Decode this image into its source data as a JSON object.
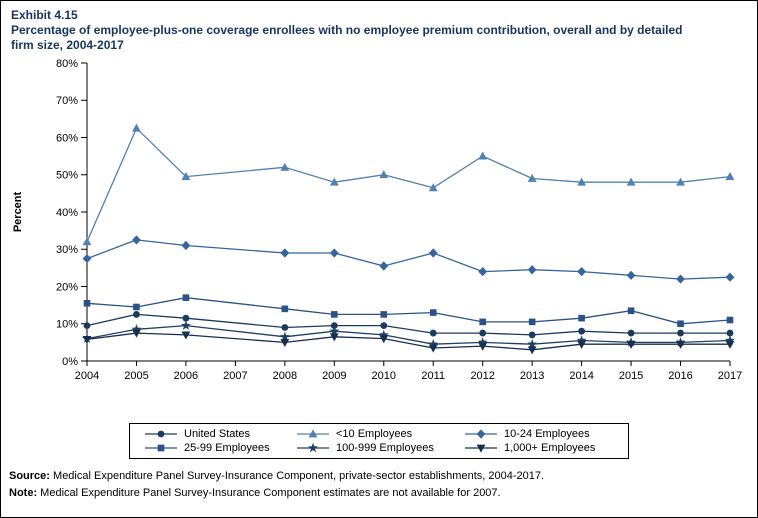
{
  "header": {
    "exhibit": "Exhibit 4.15",
    "title": "Percentage of employee-plus-one coverage enrollees with no employee premium contribution, overall and by detailed firm size, 2004-2017"
  },
  "chart_data": {
    "type": "line",
    "x": [
      2004,
      2005,
      2006,
      2007,
      2008,
      2009,
      2010,
      2011,
      2012,
      2013,
      2014,
      2015,
      2016,
      2017
    ],
    "ylabel": "Percent",
    "ylim": [
      0,
      80
    ],
    "ytick_step": 10,
    "ytick_suffix": "%",
    "legend_position": "bottom",
    "note": "2007 values not available",
    "series": [
      {
        "name": "United States",
        "marker": "circle",
        "color": "#1b3a5f",
        "values": [
          9.5,
          12.5,
          11.5,
          null,
          9,
          9.5,
          9.5,
          7.5,
          7.5,
          7,
          8,
          7.5,
          7.5,
          7.5
        ]
      },
      {
        "name": "<10 Employees",
        "marker": "triangle-up",
        "color": "#4f81b2",
        "values": [
          32,
          62.5,
          49.5,
          null,
          52,
          48,
          50,
          46.5,
          55,
          49,
          48,
          48,
          48,
          49.5
        ]
      },
      {
        "name": "10-24 Employees",
        "marker": "diamond",
        "color": "#34659b",
        "values": [
          27.5,
          32.5,
          31,
          null,
          29,
          29,
          25.5,
          29,
          24,
          24.5,
          24,
          23,
          22,
          22.5
        ]
      },
      {
        "name": "25-99 Employees",
        "marker": "square",
        "color": "#2a5286",
        "values": [
          15.5,
          14.5,
          17,
          null,
          14,
          12.5,
          12.5,
          13,
          10.5,
          10.5,
          11.5,
          13.5,
          10,
          11
        ]
      },
      {
        "name": "100-999 Employees",
        "marker": "star",
        "color": "#1f4061",
        "values": [
          6,
          8.5,
          9.5,
          null,
          6.5,
          8,
          7,
          4.5,
          5,
          4.5,
          5.5,
          5,
          5,
          5.5
        ]
      },
      {
        "name": "1,000+ Employees",
        "marker": "triangle-down",
        "color": "#16304f",
        "values": [
          5.8,
          7.5,
          7,
          null,
          5,
          6.5,
          6,
          3.5,
          4,
          3,
          4.5,
          4.5,
          4.5,
          4.5
        ]
      }
    ]
  },
  "footer": {
    "source_label": "Source:",
    "source_text": "Medical Expenditure Panel Survey-Insurance Component, private-sector establishments, 2004-2017.",
    "note_label": "Note:",
    "note_text": "Medical Expenditure Panel Survey-Insurance Component estimates are not available for 2007."
  }
}
